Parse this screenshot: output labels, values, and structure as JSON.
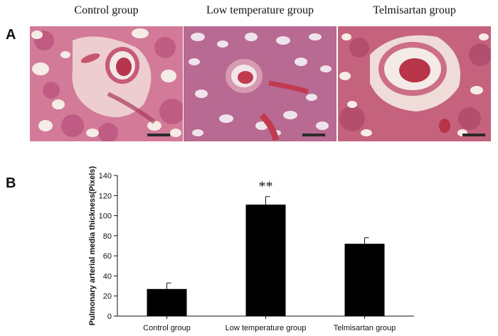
{
  "panels": {
    "a_label": "A",
    "b_label": "B"
  },
  "micrographs": [
    {
      "title": "Control group",
      "scale_bar": "50.0 µm"
    },
    {
      "title": "Low temperature group",
      "scale_bar": "50.0 µm"
    },
    {
      "title": "Telmisartan group",
      "scale_bar": "50.0 µm"
    }
  ],
  "chart_data": {
    "type": "bar",
    "categories": [
      "Control group",
      "Low temperature group",
      "Telmisartan group"
    ],
    "values": [
      27,
      111,
      72
    ],
    "errors": [
      6,
      8,
      6
    ],
    "annotations": [
      "",
      "**",
      ""
    ],
    "ylabel": "Pulmonary arterial media thickness(Pixels)",
    "xlabel": "",
    "ylim": [
      0,
      140
    ],
    "yticks": [
      0,
      20,
      40,
      60,
      80,
      100,
      120,
      140
    ],
    "grid": false,
    "bar_color": "#000000"
  }
}
